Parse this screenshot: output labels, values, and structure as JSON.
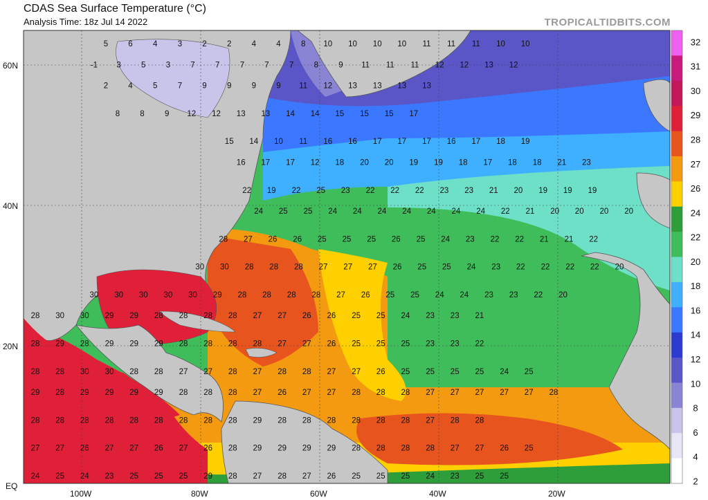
{
  "header": {
    "title": "CDAS Sea Surface Temperature (°C)",
    "analysis_time": "Analysis Time: 18z Jul 14 2022",
    "brand": "TROPICALTIDBITS.COM"
  },
  "axes": {
    "lat_ticks": [
      "60N",
      "40N",
      "20N",
      "EQ"
    ],
    "lon_ticks": [
      "100W",
      "80W",
      "60W",
      "40W",
      "20W"
    ]
  },
  "colorbar": {
    "labels": [
      "32",
      "31",
      "30",
      "29",
      "28",
      "27",
      "26",
      "24",
      "22",
      "20",
      "18",
      "16",
      "14",
      "12",
      "10",
      "8",
      "6",
      "4",
      "2"
    ],
    "colors": [
      "#f060f0",
      "#c8197d",
      "#c2185b",
      "#e02038",
      "#e8541e",
      "#f49a10",
      "#ffd000",
      "#2e9e3a",
      "#3fbd5a",
      "#6ee0c8",
      "#3fb0ff",
      "#3c78ff",
      "#2c3ad0",
      "#5a56c8",
      "#8a84d4",
      "#c8c4ea",
      "#e8e6f6",
      "#ffffff"
    ]
  },
  "chart_data": {
    "type": "heatmap",
    "title": "CDAS Sea Surface Temperature (°C)",
    "units": "°C",
    "analysis_time": "18z Jul 14 2022",
    "domain": "North Atlantic, 110W-0, EQ-65N",
    "grid_rows": [
      {
        "lat": 63,
        "values": [
          "5",
          "6",
          "4",
          "3",
          "2",
          "2",
          "4",
          "4",
          "8",
          "10",
          "10",
          "10",
          "10",
          "11",
          "11",
          "11",
          "10",
          "10"
        ]
      },
      {
        "lat": 60,
        "values": [
          "-1",
          "3",
          "5",
          "3",
          "7",
          "7",
          "7",
          "7",
          "7",
          "8",
          "9",
          "11",
          "11",
          "11",
          "12",
          "12",
          "13",
          "12"
        ]
      },
      {
        "lat": 57,
        "values": [
          "2",
          "4",
          "5",
          "7",
          "9",
          "9",
          "9",
          "9",
          "11",
          "12",
          "13",
          "13",
          "13",
          "13"
        ]
      },
      {
        "lat": 53,
        "values": [
          "8",
          "8",
          "9",
          "12",
          "12",
          "13",
          "13",
          "14",
          "14",
          "15",
          "15",
          "15",
          "17"
        ]
      },
      {
        "lat": 49,
        "values": [
          "15",
          "14",
          "10",
          "11",
          "16",
          "16",
          "17",
          "17",
          "17",
          "16",
          "17",
          "18",
          "19"
        ]
      },
      {
        "lat": 46,
        "values": [
          "16",
          "17",
          "17",
          "12",
          "18",
          "20",
          "20",
          "19",
          "19",
          "18",
          "17",
          "18",
          "18",
          "21",
          "23"
        ]
      },
      {
        "lat": 42,
        "values": [
          "22",
          "19",
          "22",
          "25",
          "23",
          "22",
          "22",
          "22",
          "23",
          "23",
          "21",
          "20",
          "19",
          "19",
          "19"
        ]
      },
      {
        "lat": 39,
        "values": [
          "24",
          "25",
          "25",
          "24",
          "24",
          "24",
          "24",
          "24",
          "24",
          "24",
          "22",
          "21",
          "20",
          "20",
          "20",
          "20"
        ]
      },
      {
        "lat": 35,
        "values": [
          "28",
          "27",
          "26",
          "26",
          "25",
          "25",
          "25",
          "26",
          "25",
          "24",
          "23",
          "22",
          "22",
          "21",
          "21",
          "22"
        ]
      },
      {
        "lat": 31,
        "values": [
          "30",
          "30",
          "28",
          "28",
          "28",
          "27",
          "27",
          "27",
          "26",
          "25",
          "25",
          "24",
          "23",
          "22",
          "22",
          "22",
          "22",
          "20"
        ]
      },
      {
        "lat": 27,
        "values": [
          "30",
          "30",
          "30",
          "30",
          "30",
          "29",
          "28",
          "28",
          "28",
          "28",
          "27",
          "26",
          "25",
          "25",
          "24",
          "24",
          "23",
          "23",
          "22",
          "20"
        ]
      },
      {
        "lat": 24,
        "values": [
          "28",
          "30",
          "30",
          "29",
          "29",
          "28",
          "28",
          "28",
          "28",
          "27",
          "27",
          "26",
          "26",
          "25",
          "25",
          "24",
          "23",
          "23",
          "21"
        ]
      },
      {
        "lat": 20,
        "values": [
          "28",
          "29",
          "28",
          "29",
          "29",
          "29",
          "28",
          "28",
          "28",
          "28",
          "27",
          "27",
          "26",
          "25",
          "25",
          "25",
          "23",
          "23",
          "22"
        ]
      },
      {
        "lat": 16,
        "values": [
          "28",
          "28",
          "30",
          "30",
          "28",
          "28",
          "27",
          "27",
          "28",
          "27",
          "28",
          "28",
          "27",
          "27",
          "26",
          "25",
          "25",
          "25",
          "25",
          "24",
          "25"
        ]
      },
      {
        "lat": 13,
        "values": [
          "29",
          "28",
          "29",
          "29",
          "29",
          "29",
          "28",
          "28",
          "28",
          "27",
          "26",
          "27",
          "27",
          "28",
          "28",
          "28",
          "27",
          "27",
          "27",
          "27",
          "27",
          "28"
        ]
      },
      {
        "lat": 9,
        "values": [
          "28",
          "28",
          "28",
          "28",
          "28",
          "28",
          "28",
          "28",
          "28",
          "29",
          "28",
          "28",
          "28",
          "28",
          "28",
          "28",
          "27",
          "28",
          "28"
        ]
      },
      {
        "lat": 5,
        "values": [
          "27",
          "27",
          "26",
          "27",
          "27",
          "26",
          "27",
          "26",
          "28",
          "29",
          "29",
          "29",
          "29",
          "28",
          "28",
          "28",
          "28",
          "27",
          "27",
          "26",
          "25"
        ]
      },
      {
        "lat": 1,
        "values": [
          "24",
          "25",
          "24",
          "23",
          "25",
          "25",
          "25",
          "29",
          "28",
          "27",
          "28",
          "27",
          "26",
          "25",
          "25",
          "25",
          "24",
          "23",
          "25",
          "25"
        ]
      }
    ]
  }
}
